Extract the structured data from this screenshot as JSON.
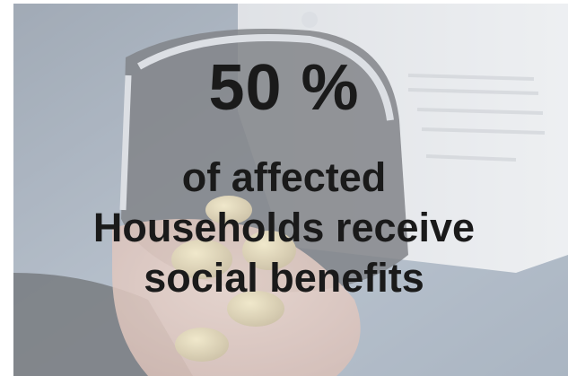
{
  "headline": "50 %",
  "subtext": {
    "line1": "of affected",
    "line2": "Households receive",
    "line3": "social benefits"
  },
  "colors": {
    "text": "#1a1a1a",
    "photo_wash": "#9aa3ae"
  },
  "background_image": "coin-purse-and-coins-in-hand-photo"
}
